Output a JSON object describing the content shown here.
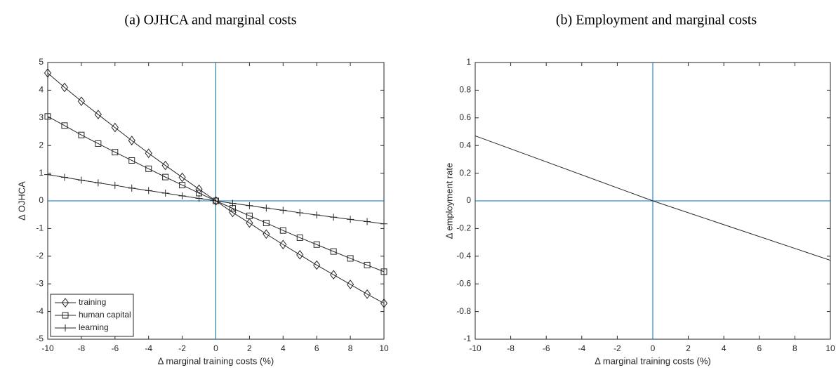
{
  "chart_data": [
    {
      "type": "line",
      "title": "(a) OJHCA and marginal costs",
      "x_label": "Δ marginal training costs (%)",
      "y_label": "Δ OJHCA",
      "x": [
        -10,
        -9,
        -8,
        -7,
        -6,
        -5,
        -4,
        -3,
        -2,
        -1,
        0,
        1,
        2,
        3,
        4,
        5,
        6,
        7,
        8,
        9,
        10
      ],
      "series": [
        {
          "name": "training",
          "color": "#262626",
          "marker": "diamond",
          "values": [
            4.62,
            4.1,
            3.6,
            3.12,
            2.65,
            2.18,
            1.72,
            1.28,
            0.85,
            0.42,
            0,
            -0.42,
            -0.8,
            -1.2,
            -1.58,
            -1.95,
            -2.32,
            -2.67,
            -3.02,
            -3.37,
            -3.7
          ]
        },
        {
          "name": "human capital",
          "color": "#262626",
          "marker": "square",
          "values": [
            3.05,
            2.72,
            2.38,
            2.07,
            1.76,
            1.46,
            1.16,
            0.86,
            0.57,
            0.28,
            0,
            -0.27,
            -0.54,
            -0.8,
            -1.07,
            -1.33,
            -1.58,
            -1.83,
            -2.08,
            -2.32,
            -2.56
          ]
        },
        {
          "name": "learning",
          "color": "#262626",
          "marker": "plus",
          "values": [
            0.95,
            0.85,
            0.75,
            0.65,
            0.56,
            0.46,
            0.37,
            0.28,
            0.18,
            0.09,
            0,
            -0.09,
            -0.17,
            -0.26,
            -0.34,
            -0.43,
            -0.51,
            -0.59,
            -0.67,
            -0.75,
            -0.83
          ]
        }
      ],
      "xlim": [
        -10,
        10
      ],
      "xticks": [
        -10,
        -8,
        -6,
        -4,
        -2,
        0,
        2,
        4,
        6,
        8,
        10
      ],
      "ylim": [
        -5,
        5
      ],
      "yticks": [
        -5,
        -4,
        -3,
        -2,
        -1,
        0,
        1,
        2,
        3,
        4,
        5
      ],
      "crosshair": {
        "x": 0,
        "y": 0,
        "color": "#0072bd"
      },
      "legend": "lower left"
    },
    {
      "type": "line",
      "title": "(b) Employment and marginal costs",
      "x_label": "Δ marginal training costs (%)",
      "y_label": "Δ employment rate",
      "x": [
        -10,
        0,
        10
      ],
      "series": [
        {
          "color": "#262626",
          "values": [
            0.47,
            0,
            -0.43
          ]
        }
      ],
      "xlim": [
        -10,
        10
      ],
      "xticks": [
        -10,
        -8,
        -6,
        -4,
        -2,
        0,
        2,
        4,
        6,
        8,
        10
      ],
      "ylim": [
        -1,
        1
      ],
      "yticks": [
        -1,
        -0.8,
        -0.6,
        -0.4,
        -0.2,
        0,
        0.2,
        0.4,
        0.6,
        0.8,
        1
      ],
      "crosshair": {
        "x": 0,
        "y": 0,
        "color": "#0072bd"
      }
    }
  ]
}
